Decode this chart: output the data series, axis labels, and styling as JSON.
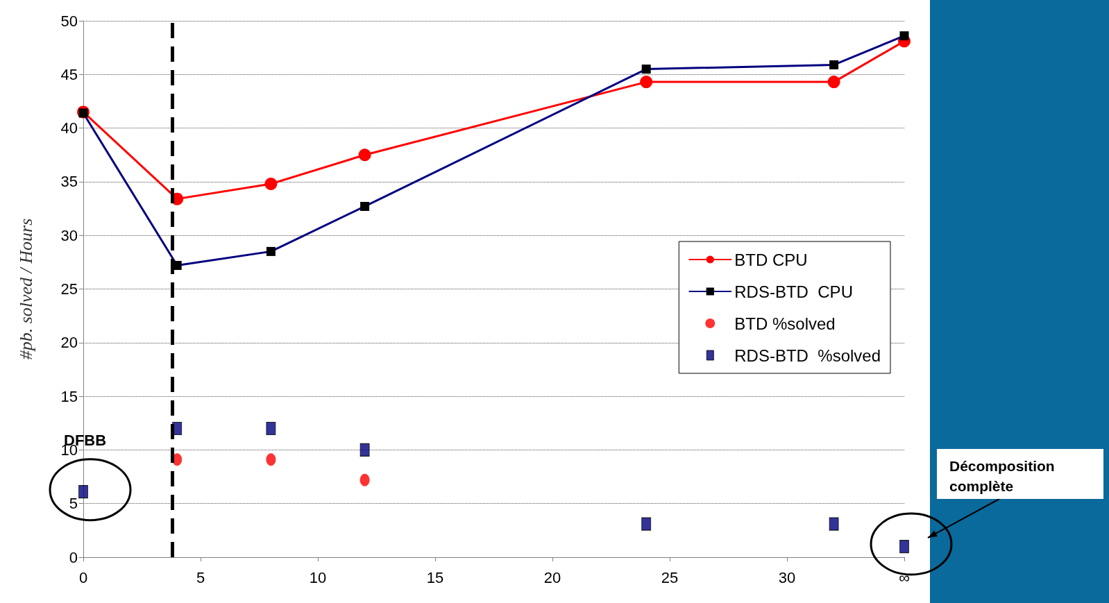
{
  "chart_data": {
    "type": "line",
    "ylabel": "#pb. solved / Hours",
    "x": [
      0,
      4,
      8,
      12,
      24,
      32,
      35
    ],
    "xlim": [
      0,
      35
    ],
    "xticks": [
      0,
      5,
      10,
      15,
      20,
      25,
      30,
      {
        "value": 35,
        "label": "∞"
      }
    ],
    "ylim": [
      0,
      50
    ],
    "yticks": [
      0,
      5,
      10,
      15,
      20,
      25,
      30,
      35,
      40,
      45,
      50
    ],
    "grid": "y",
    "legend": "right",
    "line_style": "solid",
    "series": [
      {
        "name": "BTD CPU",
        "marker": "circle",
        "color": "#ff0000",
        "values": [
          41.5,
          33.4,
          34.8,
          37.5,
          44.3,
          44.3,
          48.1
        ]
      },
      {
        "name": "RDS-BTD  CPU",
        "marker": "square",
        "color": "#000080",
        "values": [
          41.4,
          27.2,
          28.5,
          32.7,
          45.5,
          45.9,
          48.6
        ]
      },
      {
        "name": "BTD %solved",
        "type": "scatter",
        "marker": "circle",
        "color": "#ff0000",
        "values": [
          null,
          9.1,
          9.1,
          7.2,
          null,
          null,
          null
        ]
      },
      {
        "name": "RDS-BTD  %solved",
        "type": "scatter",
        "marker": "square",
        "color": "#000080",
        "values": [
          6.1,
          12.0,
          12.0,
          10.0,
          3.1,
          3.1,
          1.0
        ]
      }
    ],
    "ref_lines": [
      {
        "axis": "x",
        "value": 3.8,
        "color": "#000000",
        "line_style": "dashed"
      }
    ],
    "annotations": [
      {
        "text": "DFBB",
        "x": 0,
        "y": 6.1
      },
      "Décomposition complète"
    ]
  }
}
